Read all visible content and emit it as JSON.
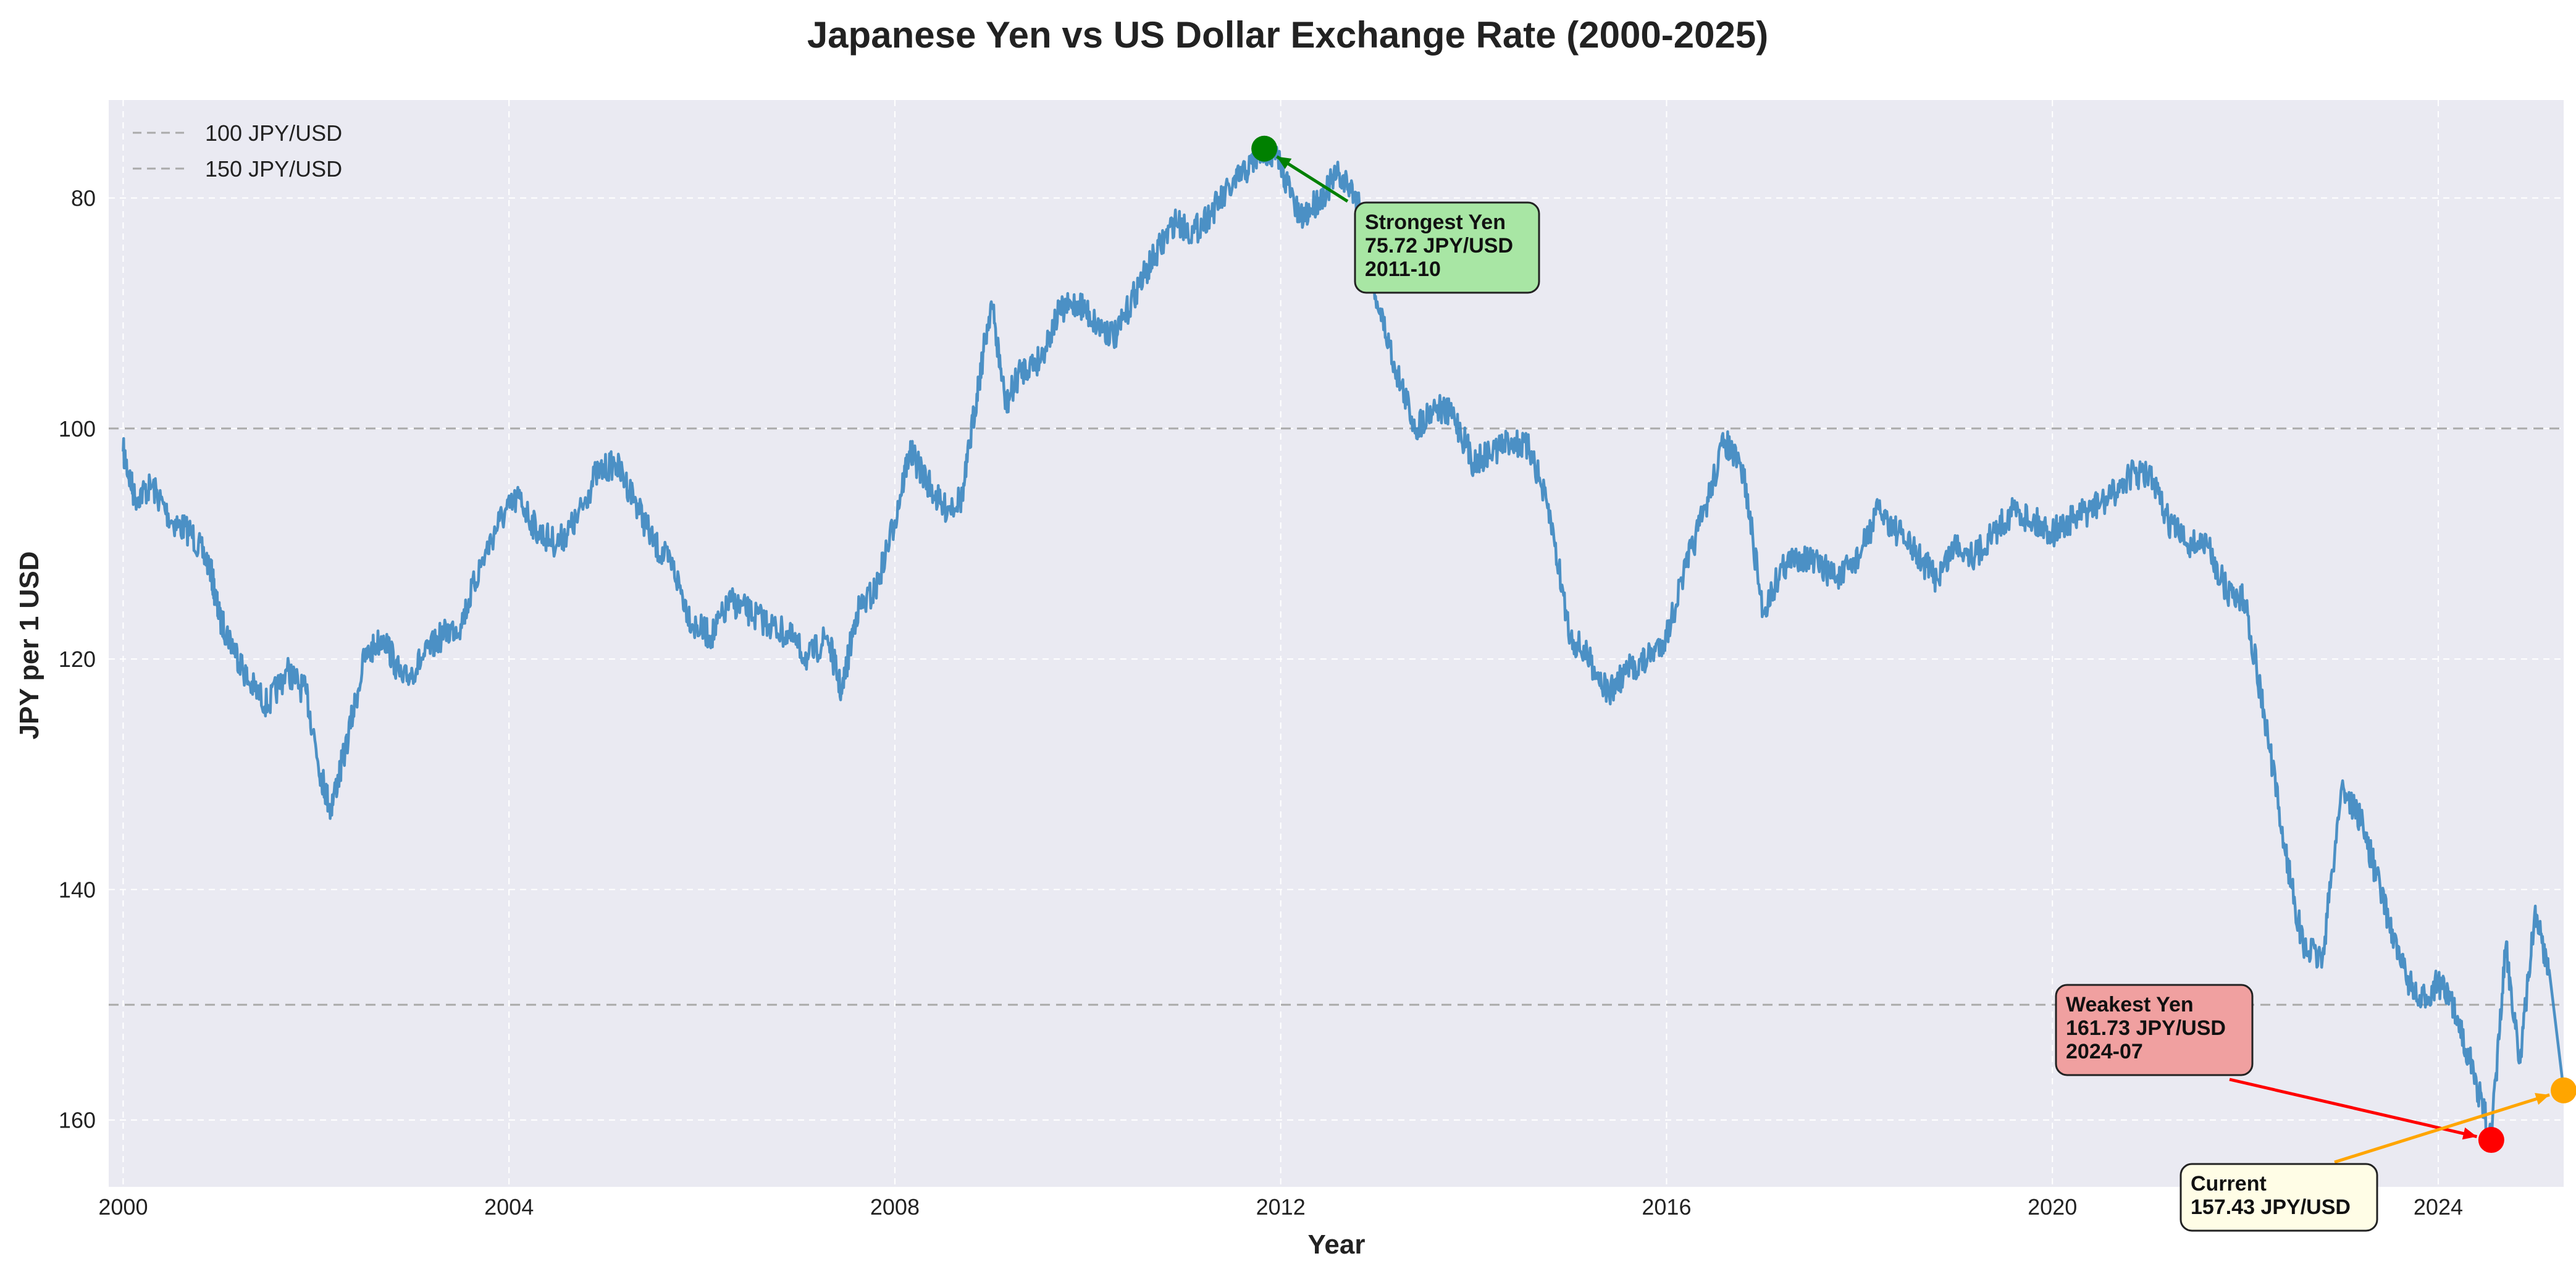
{
  "chart_data": {
    "type": "line",
    "title": "Japanese Yen vs US Dollar Exchange Rate (2000-2025)",
    "xlabel": "Year",
    "ylabel": "JPY per 1 USD",
    "xlim": [
      1999.85,
      2025.3
    ],
    "ylim": [
      165.8,
      71.5
    ],
    "y_inverted": true,
    "xticks": [
      2000,
      2004,
      2008,
      2012,
      2016,
      2020,
      2024
    ],
    "yticks": [
      80,
      100,
      120,
      140,
      160
    ],
    "grid": true,
    "legend_position": "top-left",
    "series": [
      {
        "name": "",
        "color": "#3a86c0",
        "x": [
          2000.0,
          2000.12,
          2000.3,
          2000.5,
          2000.7,
          2000.9,
          2001.0,
          2001.15,
          2001.3,
          2001.5,
          2001.7,
          2001.9,
          2002.05,
          2002.15,
          2002.3,
          2002.5,
          2002.7,
          2002.9,
          2003.1,
          2003.3,
          2003.5,
          2003.7,
          2003.9,
          2004.1,
          2004.3,
          2004.5,
          2004.7,
          2004.9,
          2005.1,
          2005.3,
          2005.5,
          2005.7,
          2005.9,
          2006.1,
          2006.3,
          2006.5,
          2006.7,
          2006.9,
          2007.1,
          2007.3,
          2007.45,
          2007.6,
          2007.8,
          2008.0,
          2008.15,
          2008.3,
          2008.5,
          2008.7,
          2008.85,
          2009.0,
          2009.15,
          2009.3,
          2009.5,
          2009.7,
          2009.9,
          2010.1,
          2010.3,
          2010.5,
          2010.7,
          2010.9,
          2011.1,
          2011.3,
          2011.5,
          2011.7,
          2011.83,
          2012.0,
          2012.2,
          2012.4,
          2012.6,
          2012.8,
          2013.0,
          2013.2,
          2013.4,
          2013.6,
          2013.8,
          2014.0,
          2014.2,
          2014.4,
          2014.6,
          2014.8,
          2015.0,
          2015.2,
          2015.4,
          2015.6,
          2015.8,
          2016.0,
          2016.2,
          2016.4,
          2016.6,
          2016.8,
          2017.0,
          2017.2,
          2017.4,
          2017.6,
          2017.8,
          2018.0,
          2018.2,
          2018.4,
          2018.6,
          2018.8,
          2019.0,
          2019.2,
          2019.4,
          2019.6,
          2019.8,
          2020.0,
          2020.2,
          2020.4,
          2020.6,
          2020.8,
          2021.0,
          2021.2,
          2021.4,
          2021.6,
          2021.8,
          2022.0,
          2022.2,
          2022.4,
          2022.6,
          2022.8,
          2023.0,
          2023.2,
          2023.4,
          2023.6,
          2023.8,
          2024.0,
          2024.2,
          2024.4,
          2024.55,
          2024.7,
          2024.85,
          2025.0,
          2025.15
        ],
        "y": [
          102.0,
          106.0,
          105.0,
          108.0,
          109.0,
          112.0,
          116.5,
          119.0,
          122.0,
          124.0,
          121.0,
          123.0,
          130.0,
          133.0,
          128.0,
          120.0,
          118.0,
          122.0,
          120.0,
          118.0,
          117.0,
          112.0,
          108.0,
          106.0,
          109.0,
          110.0,
          108.0,
          104.0,
          103.0,
          106.0,
          110.0,
          112.0,
          117.0,
          118.0,
          115.0,
          116.0,
          117.0,
          118.0,
          120.0,
          118.0,
          123.0,
          116.0,
          114.0,
          108.0,
          102.0,
          104.0,
          107.0,
          106.0,
          97.0,
          89.0,
          98.0,
          95.0,
          94.0,
          90.0,
          89.0,
          91.0,
          92.0,
          88.0,
          85.0,
          82.0,
          83.0,
          81.0,
          79.0,
          77.0,
          75.72,
          77.0,
          82.0,
          80.0,
          78.0,
          80.0,
          89.0,
          95.0,
          100.0,
          98.0,
          99.0,
          103.0,
          102.0,
          101.0,
          102.0,
          108.0,
          118.0,
          120.0,
          123.0,
          121.0,
          120.0,
          118.0,
          112.0,
          107.0,
          101.0,
          104.0,
          116.0,
          112.0,
          111.0,
          112.0,
          113.0,
          111.0,
          107.0,
          109.0,
          111.0,
          113.0,
          110.0,
          111.0,
          109.0,
          107.0,
          108.0,
          109.0,
          108.0,
          107.0,
          106.0,
          104.0,
          104.0,
          108.0,
          110.0,
          110.0,
          114.0,
          115.0,
          125.0,
          136.0,
          145.0,
          146.0,
          131.0,
          134.0,
          140.0,
          146.0,
          150.0,
          148.0,
          151.0,
          157.0,
          161.73,
          145.0,
          155.0,
          142.0,
          147.0
        ],
        "end": [
          2025.3,
          157.43
        ]
      }
    ],
    "reference_lines": [
      {
        "label": "100 JPY/USD",
        "y": 100,
        "color": "#aaaaaa"
      },
      {
        "label": "150 JPY/USD",
        "y": 150,
        "color": "#aaaaaa"
      }
    ],
    "annotations": [
      {
        "name": "strongest",
        "lines": [
          "Strongest Yen",
          "75.72 JPY/USD",
          "2011-10"
        ],
        "x": 2011.83,
        "y": 75.72,
        "marker_color": "#008000",
        "box_color": "#a8e6a4",
        "arrow_color": "#008000"
      },
      {
        "name": "weakest",
        "lines": [
          "Weakest Yen",
          "161.73 JPY/USD",
          "2024-07"
        ],
        "x": 2024.55,
        "y": 161.73,
        "marker_color": "#ff0000",
        "box_color": "#f0a0a0",
        "arrow_color": "#ff0000"
      },
      {
        "name": "current",
        "lines": [
          "Current",
          "157.43 JPY/USD"
        ],
        "x": 2025.3,
        "y": 157.43,
        "marker_color": "#ffa500",
        "box_color": "#fffde6",
        "arrow_color": "#ffa500"
      }
    ]
  }
}
